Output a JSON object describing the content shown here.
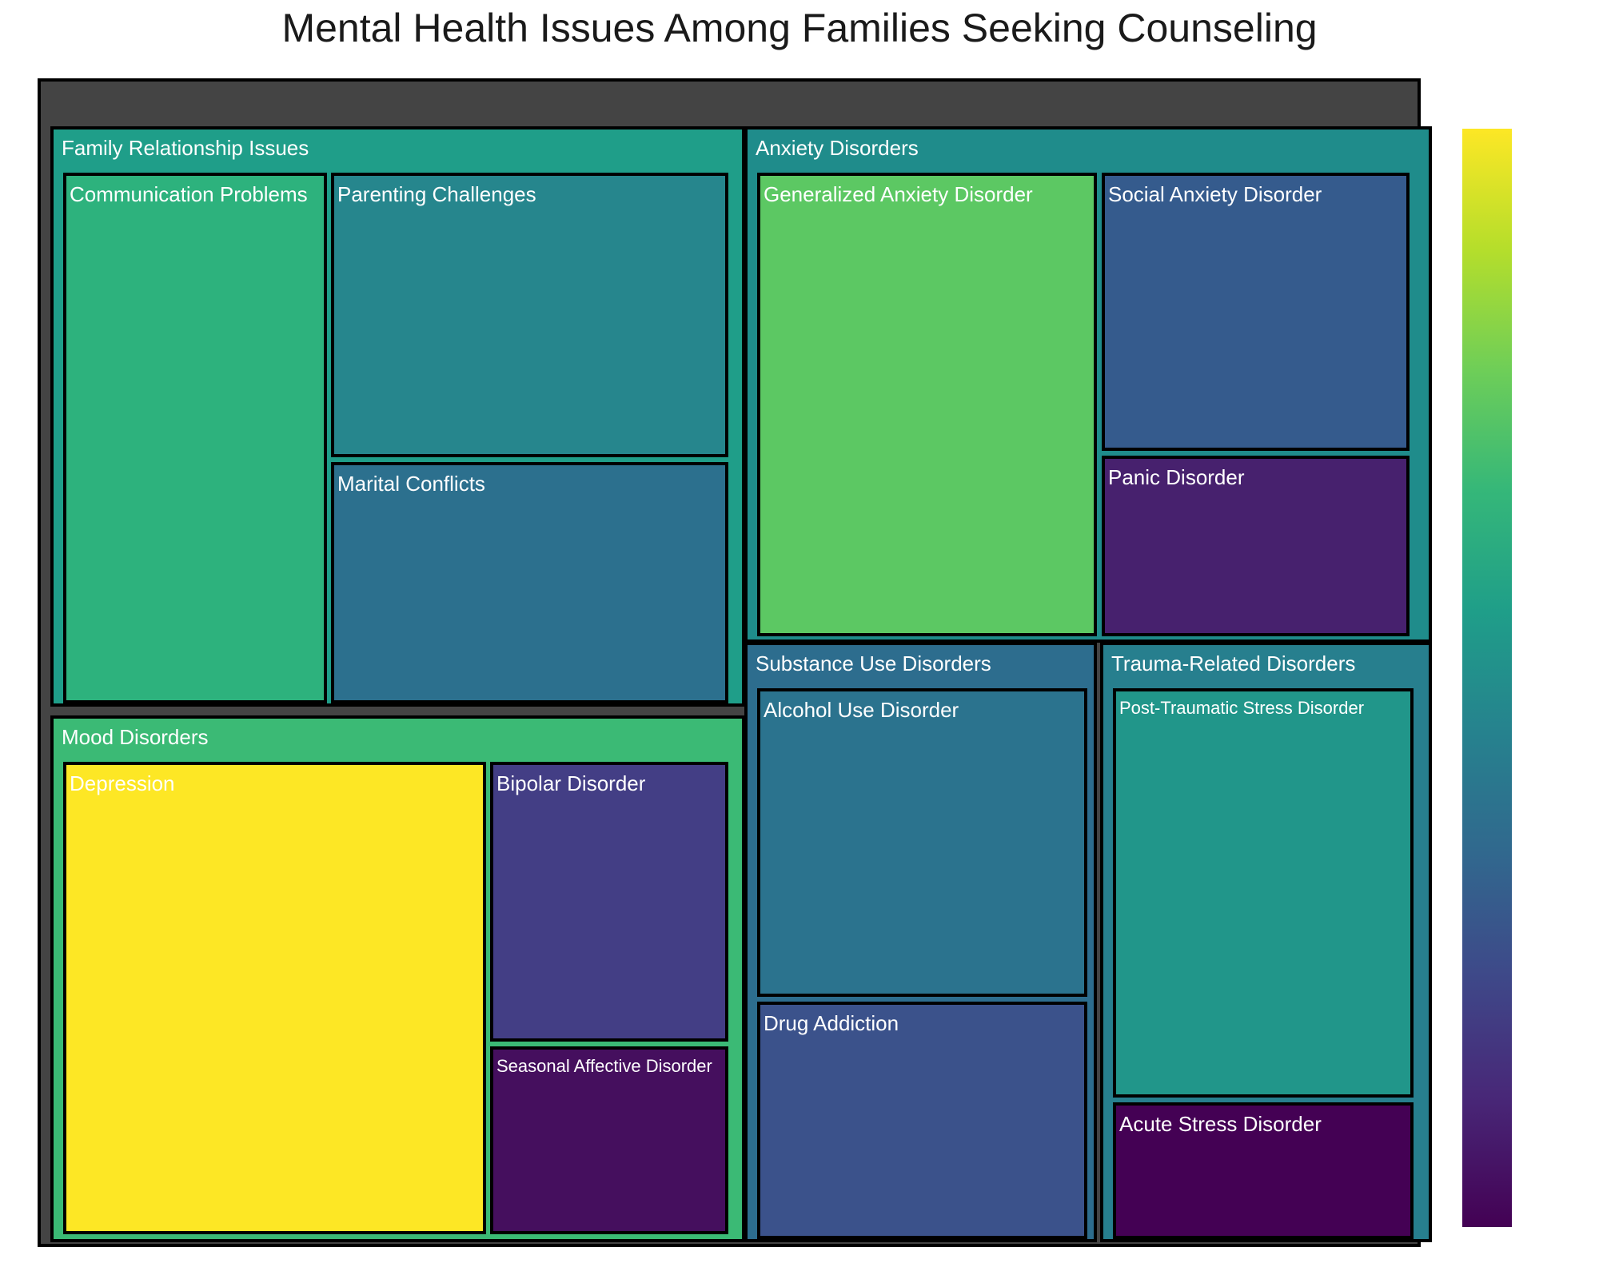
{
  "chart_data": {
    "type": "treemap",
    "title": "Mental Health Issues Among Families Seeking Counseling",
    "colorscale": "Viridis",
    "groups": [
      {
        "name": "Family Relationship Issues",
        "color": "#1f9e89",
        "items": [
          {
            "name": "Communication Problems",
            "color": "#2db27d"
          },
          {
            "name": "Parenting Challenges",
            "color": "#26868d"
          },
          {
            "name": "Marital Conflicts",
            "color": "#2c708e"
          }
        ]
      },
      {
        "name": "Mood Disorders",
        "color": "#3bba75",
        "items": [
          {
            "name": "Depression",
            "color": "#fde725"
          },
          {
            "name": "Bipolar Disorder",
            "color": "#433e85"
          },
          {
            "name": "Seasonal Affective Disorder",
            "color": "#450f5e"
          }
        ]
      },
      {
        "name": "Anxiety Disorders",
        "color": "#1f8c8b",
        "items": [
          {
            "name": "Generalized Anxiety Disorder",
            "color": "#5cc863"
          },
          {
            "name": "Social Anxiety Disorder",
            "color": "#355b8d"
          },
          {
            "name": "Panic Disorder",
            "color": "#47216e"
          }
        ]
      },
      {
        "name": "Substance Use Disorders",
        "color": "#2d6d8e",
        "items": [
          {
            "name": "Alcohol Use Disorder",
            "color": "#2b738e"
          },
          {
            "name": "Drug Addiction",
            "color": "#3b528b"
          }
        ]
      },
      {
        "name": "Trauma-Related Disorders",
        "color": "#277f8e",
        "items": [
          {
            "name": "Post-Traumatic Stress Disorder",
            "color": "#21968a"
          },
          {
            "name": "Acute Stress Disorder",
            "color": "#440154"
          }
        ]
      }
    ]
  }
}
